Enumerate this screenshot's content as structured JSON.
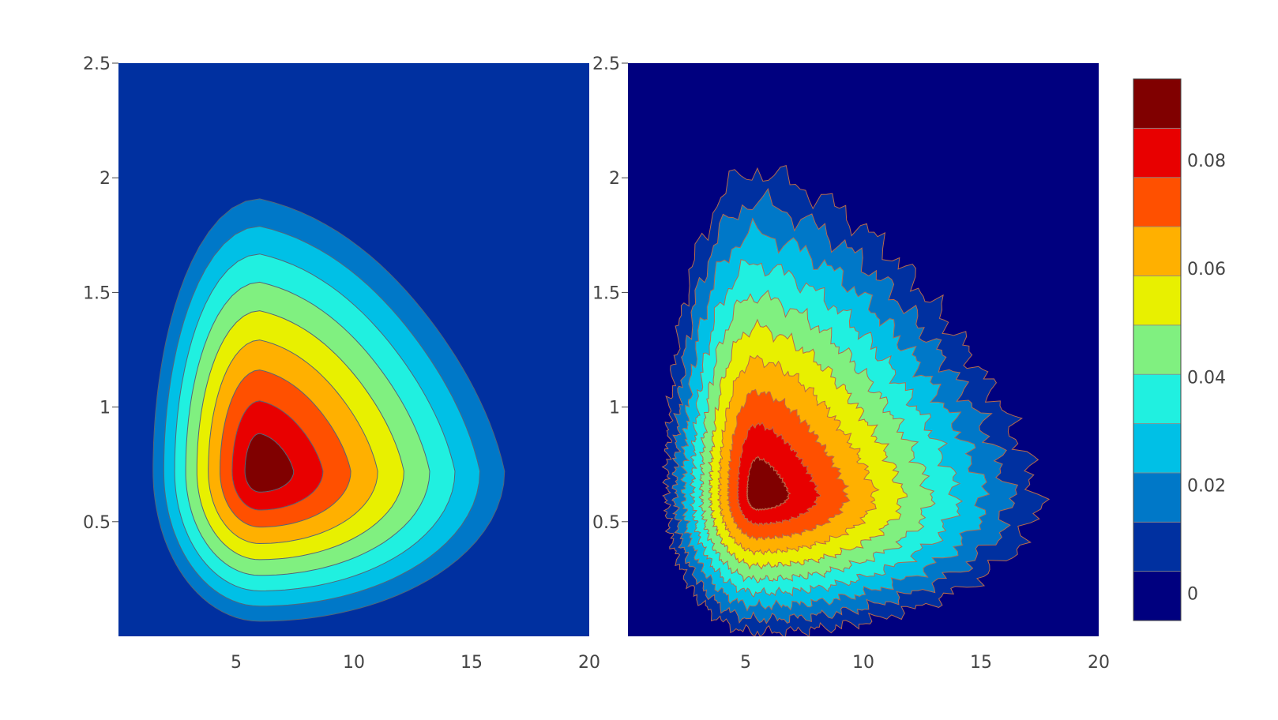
{
  "chart_data": [
    {
      "type": "contour",
      "panel": "left",
      "x_ticks": [
        "5",
        "10",
        "15",
        "20"
      ],
      "y_ticks": [
        "0.5",
        "1",
        "1.5",
        "2",
        "2.5"
      ],
      "xlim": [
        0,
        20
      ],
      "ylim": [
        0,
        2.5
      ],
      "peak": {
        "x": 6,
        "y": 0.72,
        "z": 0.095
      },
      "contour_levels": [
        0,
        0.01,
        0.02,
        0.03,
        0.04,
        0.05,
        0.06,
        0.07,
        0.08,
        0.09
      ],
      "background_level": 0.005
    },
    {
      "type": "contour",
      "panel": "right",
      "x_ticks": [
        "5",
        "10",
        "15",
        "20"
      ],
      "y_ticks": [
        "0.5",
        "1",
        "1.5",
        "2",
        "2.5"
      ],
      "xlim": [
        0,
        20
      ],
      "ylim": [
        0,
        2.5
      ],
      "peak": {
        "x": 5.5,
        "y": 0.62,
        "z": 0.095
      },
      "contour_levels": [
        0,
        0.01,
        0.02,
        0.03,
        0.04,
        0.05,
        0.06,
        0.07,
        0.08,
        0.09
      ],
      "background_level": -0.005
    }
  ],
  "colorbar": {
    "ticks": [
      "0",
      "0.02",
      "0.04",
      "0.06",
      "0.08"
    ],
    "tick_values": [
      0,
      0.02,
      0.04,
      0.06,
      0.08
    ],
    "range": [
      -0.005,
      0.095
    ],
    "colors": [
      "#00007f",
      "#0030a0",
      "#0078c8",
      "#00c0e6",
      "#20f0e0",
      "#80f080",
      "#e8f000",
      "#ffb000",
      "#ff5000",
      "#e80000",
      "#800000"
    ]
  }
}
